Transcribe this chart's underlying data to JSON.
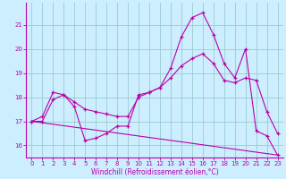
{
  "xlabel": "Windchill (Refroidissement éolien,°C)",
  "background_color": "#cceeff",
  "grid_color": "#99cccc",
  "line_color": "#bb00aa",
  "xlim": [
    -0.5,
    23.5
  ],
  "ylim": [
    15.5,
    21.9
  ],
  "yticks": [
    16,
    17,
    18,
    19,
    20,
    21
  ],
  "xticks": [
    0,
    1,
    2,
    3,
    4,
    5,
    6,
    7,
    8,
    9,
    10,
    11,
    12,
    13,
    14,
    15,
    16,
    17,
    18,
    19,
    20,
    21,
    22,
    23
  ],
  "line1_x": [
    0,
    1,
    2,
    3,
    4,
    5,
    6,
    7,
    8,
    9,
    10,
    11,
    12,
    13,
    14,
    15,
    16,
    17,
    18,
    19,
    20,
    21,
    22,
    23
  ],
  "line1_y": [
    17.0,
    17.2,
    18.2,
    18.1,
    17.6,
    16.2,
    16.3,
    16.5,
    16.8,
    16.8,
    18.1,
    18.2,
    18.4,
    19.2,
    20.5,
    21.3,
    21.5,
    20.6,
    19.4,
    18.8,
    20.0,
    16.6,
    16.4,
    15.6
  ],
  "line2_x": [
    0,
    1,
    2,
    3,
    4,
    5,
    6,
    7,
    8,
    9,
    10,
    11,
    12,
    13,
    14,
    15,
    16,
    17,
    18,
    19,
    20,
    21,
    22,
    23
  ],
  "line2_y": [
    17.0,
    17.0,
    17.9,
    18.1,
    17.8,
    17.5,
    17.4,
    17.3,
    17.2,
    17.2,
    18.0,
    18.2,
    18.4,
    18.8,
    19.3,
    19.6,
    19.8,
    19.4,
    18.7,
    18.6,
    18.8,
    18.7,
    17.4,
    16.5
  ],
  "line3_x": [
    0,
    23
  ],
  "line3_y": [
    17.0,
    15.6
  ]
}
